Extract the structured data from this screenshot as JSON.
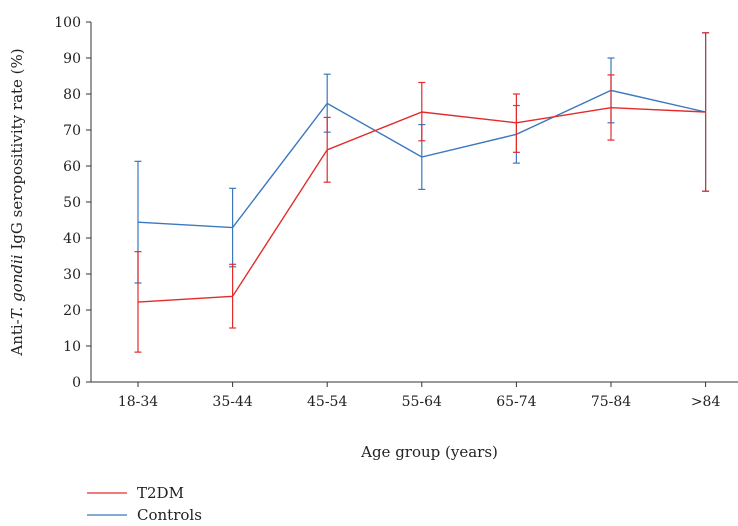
{
  "chart_data": {
    "type": "line",
    "title": "",
    "xlabel": "Age group (years)",
    "ylabel": {
      "prefix": "Anti-",
      "italic": "T. gondii",
      "suffix": " IgG seropositivity rate (%)"
    },
    "categories": [
      "18-34",
      "35-44",
      "45-54",
      "55-64",
      "65-74",
      "75-84",
      ">84"
    ],
    "ylim": [
      0,
      100
    ],
    "yticks": [
      0,
      10,
      20,
      30,
      40,
      50,
      60,
      70,
      80,
      90,
      100
    ],
    "grid": false,
    "legend_position": "bottom-left",
    "series": [
      {
        "name": "T2DM",
        "color": "#e32b2b",
        "values": [
          22.2,
          23.8,
          64.5,
          75.0,
          72.0,
          76.2,
          75.0
        ],
        "lower": [
          8.3,
          15.0,
          55.5,
          67.0,
          63.8,
          67.2,
          53.0
        ],
        "upper": [
          36.2,
          32.7,
          73.5,
          83.2,
          80.0,
          85.3,
          97.0
        ]
      },
      {
        "name": "Controls",
        "color": "#3a78c0",
        "values": [
          44.4,
          42.9,
          77.4,
          62.5,
          68.8,
          81.0,
          75.0
        ],
        "lower": [
          27.5,
          32.0,
          69.4,
          53.5,
          60.8,
          72.0,
          53.0
        ],
        "upper": [
          61.3,
          53.8,
          85.5,
          71.5,
          76.8,
          90.0,
          97.0
        ]
      }
    ]
  }
}
